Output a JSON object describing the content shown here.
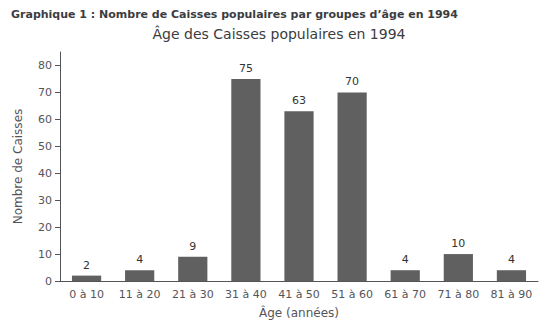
{
  "chart_data": {
    "type": "bar",
    "title": "Âge des Caisses populaires en 1994",
    "subtitle": "Graphique 1 : Nombre de Caisses populaires par groupes d’âge en 1994",
    "xlabel": "Âge (années)",
    "ylabel": "Nombre de Caisses",
    "categories": [
      "0 à 10",
      "11 à 20",
      "21 à 30",
      "31 à 40",
      "41 à 50",
      "51 à 60",
      "61 à 70",
      "71 à 80",
      "81 à 90"
    ],
    "values": [
      2,
      4,
      9,
      75,
      63,
      70,
      4,
      10,
      4
    ],
    "color": "#606060",
    "ylim": [
      0,
      85
    ],
    "yticks": [
      0,
      10,
      20,
      30,
      40,
      50,
      60,
      70,
      80
    ],
    "grid": false,
    "data_labels": true
  }
}
